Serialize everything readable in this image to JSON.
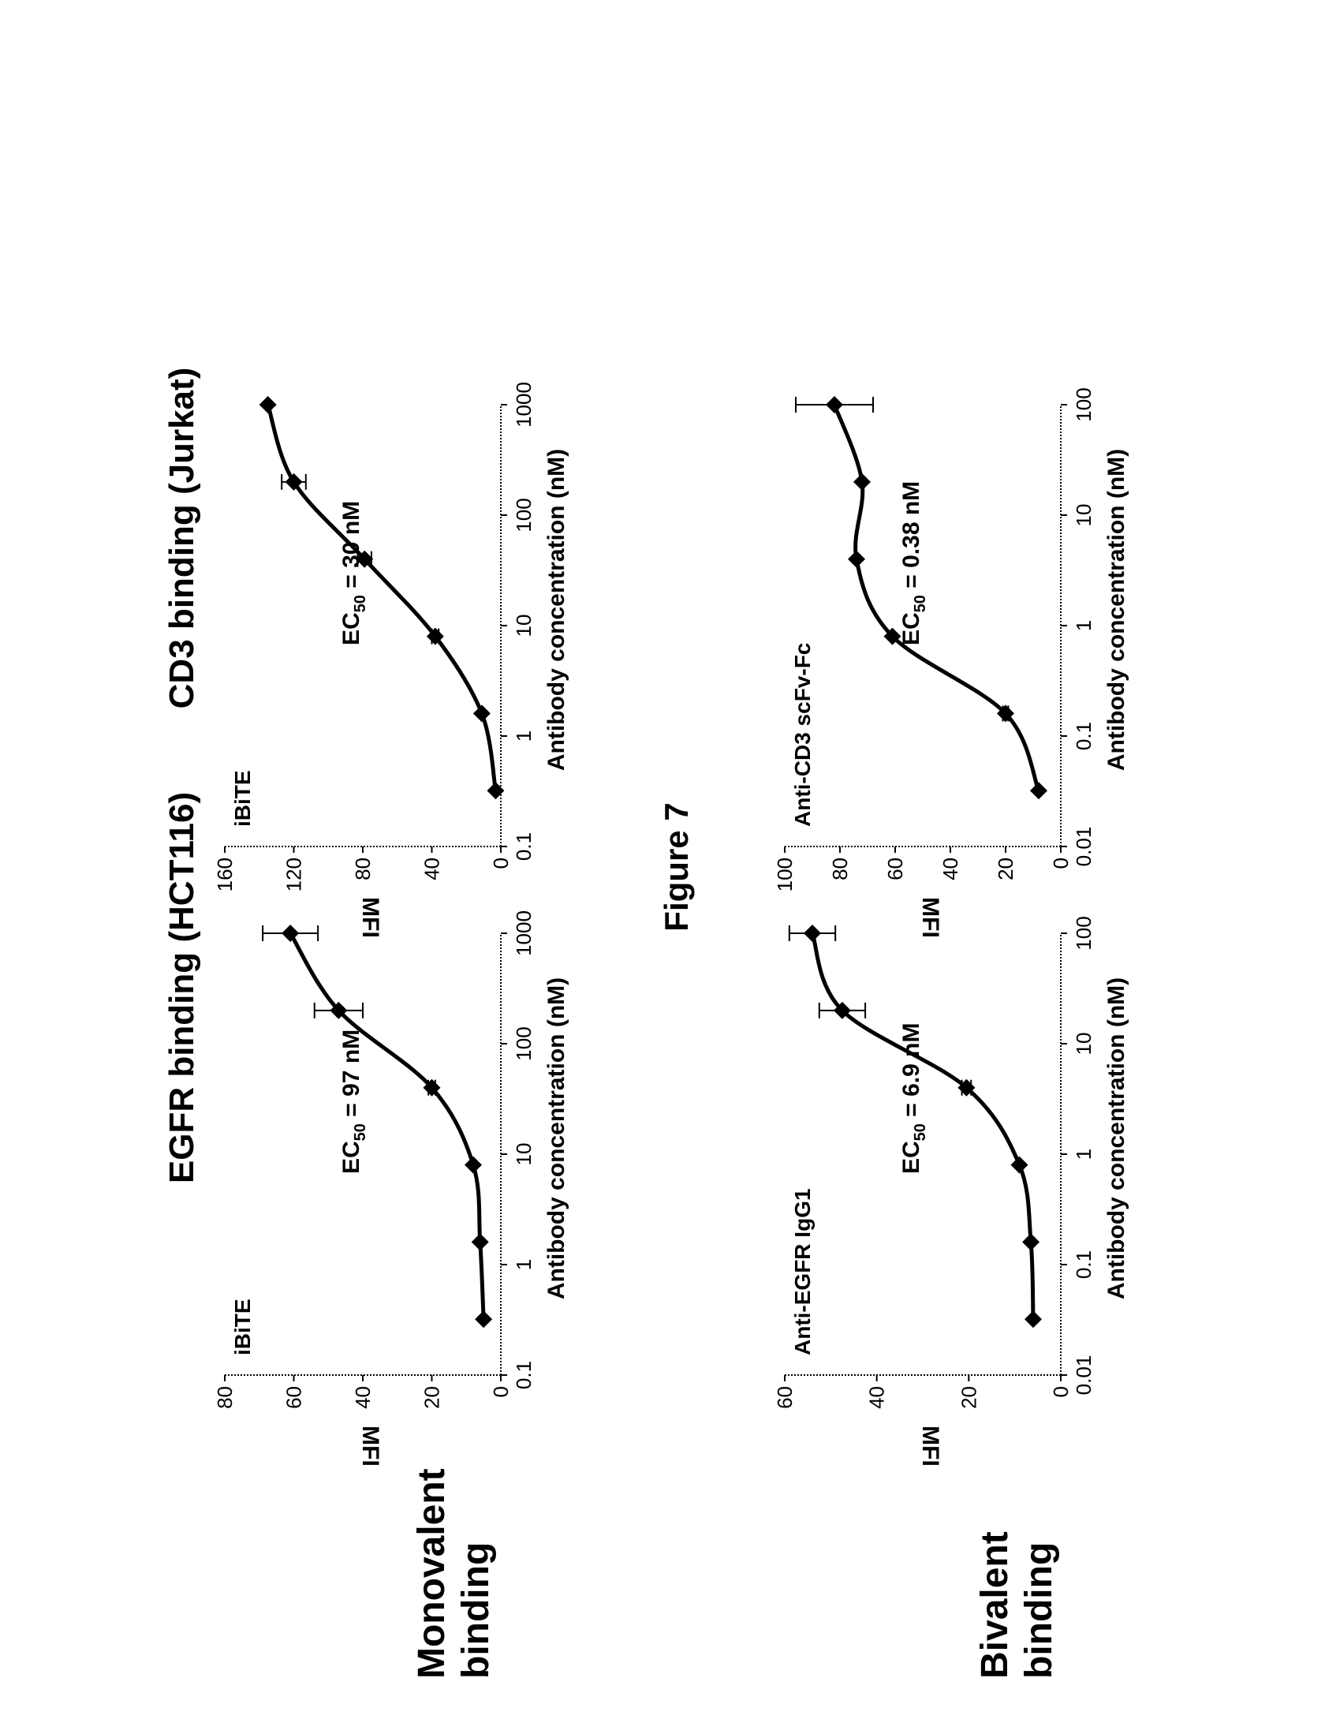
{
  "figure_title": "Figure 7",
  "column_titles": [
    "EGFR binding (HCT116)",
    "CD3 binding (Jurkat)"
  ],
  "row_labels": [
    {
      "line1": "Monovalent",
      "line2": "binding"
    },
    {
      "line1": "Bivalent",
      "line2": "binding"
    }
  ],
  "chart_data": [
    {
      "type": "line",
      "title": "EGFR binding (HCT116)",
      "panel_label": "iBiTE",
      "annotation": {
        "prefix": "EC",
        "sub": "50",
        "suffix": " = 97 nM"
      },
      "xlabel": "Antibody concentration (nM)",
      "ylabel": "MFI",
      "xscale": "log",
      "xlim": [
        0.1,
        1000
      ],
      "ylim": [
        0,
        80
      ],
      "xticks": [
        "0.1",
        "1",
        "10",
        "100",
        "1000"
      ],
      "yticks": [
        "0",
        "20",
        "40",
        "60",
        "80"
      ],
      "series": [
        {
          "x": [
            0.32,
            1.6,
            8,
            40,
            200,
            1000
          ],
          "y": [
            5,
            6,
            8,
            20,
            47,
            61
          ],
          "err": [
            0,
            0,
            0,
            1,
            7,
            8
          ]
        }
      ]
    },
    {
      "type": "line",
      "title": "CD3 binding (Jurkat)",
      "panel_label": "iBiTE",
      "annotation": {
        "prefix": "EC",
        "sub": "50",
        "suffix": " = 30 nM"
      },
      "xlabel": "Antibody concentration (nM)",
      "ylabel": "MFI",
      "xscale": "log",
      "xlim": [
        0.1,
        1000
      ],
      "ylim": [
        0,
        160
      ],
      "xticks": [
        "0.1",
        "1",
        "10",
        "100",
        "1000"
      ],
      "yticks": [
        "0",
        "40",
        "80",
        "120",
        "160"
      ],
      "series": [
        {
          "x": [
            0.32,
            1.6,
            8,
            40,
            200,
            1000
          ],
          "y": [
            3,
            11,
            38,
            79,
            120,
            135
          ],
          "err": [
            0,
            0,
            2,
            4,
            7,
            0
          ]
        }
      ]
    },
    {
      "type": "line",
      "title": "EGFR binding (HCT116)",
      "panel_label": "Anti-EGFR IgG1",
      "annotation": {
        "prefix": "EC",
        "sub": "50",
        "suffix": " = 6.9 nM"
      },
      "xlabel": "Antibody concentration (nM)",
      "ylabel": "MFI",
      "xscale": "log",
      "xlim": [
        0.01,
        100
      ],
      "ylim": [
        0,
        60
      ],
      "xticks": [
        "0.01",
        "0.1",
        "1",
        "10",
        "100"
      ],
      "yticks": [
        "0",
        "20",
        "40",
        "60"
      ],
      "series": [
        {
          "x": [
            0.032,
            0.16,
            0.8,
            4,
            20,
            100
          ],
          "y": [
            6,
            6.5,
            9,
            20.5,
            47.5,
            54
          ],
          "err": [
            0,
            0,
            0,
            1,
            5,
            5
          ]
        }
      ]
    },
    {
      "type": "line",
      "title": "CD3 binding (Jurkat)",
      "panel_label": "Anti-CD3 scFv-Fc",
      "annotation": {
        "prefix": "EC",
        "sub": "50",
        "suffix": " = 0.38 nM"
      },
      "xlabel": "Antibody concentration (nM)",
      "ylabel": "MFI",
      "xscale": "log",
      "xlim": [
        0.01,
        100
      ],
      "ylim": [
        0,
        100
      ],
      "xticks": [
        "0.01",
        "0.1",
        "1",
        "10",
        "100"
      ],
      "yticks": [
        "0",
        "20",
        "40",
        "60",
        "80",
        "100"
      ],
      "series": [
        {
          "x": [
            0.032,
            0.16,
            0.8,
            4,
            20,
            100
          ],
          "y": [
            8,
            20,
            61,
            74,
            72,
            82
          ],
          "err": [
            0,
            1,
            0,
            0,
            0,
            14
          ]
        }
      ]
    }
  ]
}
